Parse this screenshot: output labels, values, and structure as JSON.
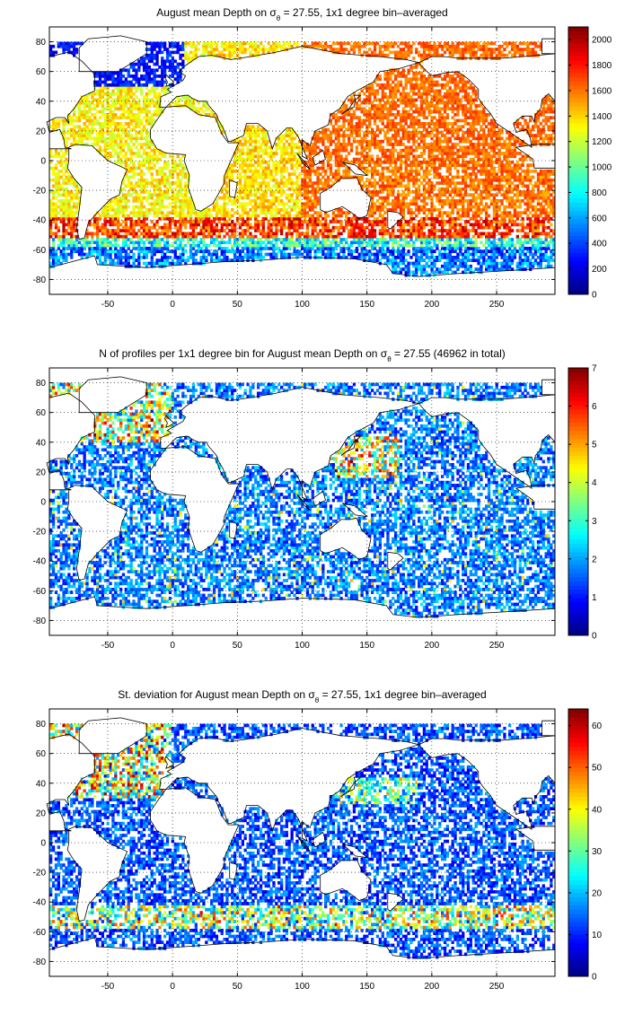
{
  "chart_data": [
    {
      "type": "heatmap",
      "title_parts": [
        "August mean Depth on ",
        "σ",
        "θ",
        " = 27.55, 1x1 degree bin–averaged"
      ],
      "x_ticks": [
        -50,
        0,
        50,
        100,
        150,
        200,
        250
      ],
      "y_ticks": [
        80,
        60,
        40,
        20,
        0,
        -20,
        -40,
        -60,
        -80
      ],
      "xlim": [
        -95,
        295
      ],
      "ylim": [
        -90,
        90
      ],
      "grid": true,
      "colorbar": {
        "ticks": [
          2000,
          1800,
          1600,
          1400,
          1200,
          1000,
          800,
          600,
          400,
          200,
          0
        ],
        "range": [
          0,
          2100
        ],
        "colormap": "jet"
      }
    },
    {
      "type": "heatmap",
      "title_parts": [
        "N of profiles per 1x1 degree bin for August mean Depth on ",
        "σ",
        "θ",
        " = 27.55 (46962 in total)"
      ],
      "x_ticks": [
        -50,
        0,
        50,
        100,
        150,
        200,
        250
      ],
      "y_ticks": [
        80,
        60,
        40,
        20,
        0,
        -20,
        -40,
        -60,
        -80
      ],
      "xlim": [
        -95,
        295
      ],
      "ylim": [
        -90,
        90
      ],
      "grid": true,
      "colorbar": {
        "ticks": [
          7,
          6,
          5,
          4,
          3,
          2,
          1,
          0
        ],
        "range": [
          0,
          7
        ],
        "colormap": "jet"
      }
    },
    {
      "type": "heatmap",
      "title_parts": [
        "St. deviation for August mean Depth on ",
        "σ",
        "θ",
        " = 27.55, 1x1 degree bin–averaged"
      ],
      "x_ticks": [
        -50,
        0,
        50,
        100,
        150,
        200,
        250
      ],
      "y_ticks": [
        80,
        60,
        40,
        20,
        0,
        -20,
        -40,
        -60,
        -80
      ],
      "xlim": [
        -95,
        295
      ],
      "ylim": [
        -90,
        90
      ],
      "grid": true,
      "colorbar": {
        "ticks": [
          60,
          50,
          40,
          30,
          20,
          10,
          0
        ],
        "range": [
          0,
          64
        ],
        "colormap": "jet"
      }
    }
  ]
}
